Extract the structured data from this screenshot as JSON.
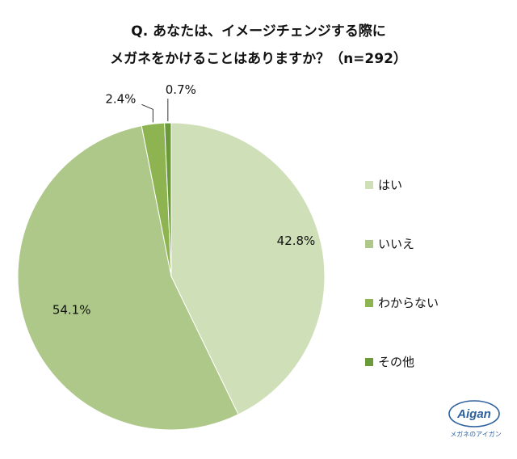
{
  "title": {
    "line1": "Q. あなたは、イメージチェンジする際に",
    "line2": "メガネをかけることはありますか？（n=292）"
  },
  "chart_data": {
    "type": "pie",
    "title": "Q. あなたは、イメージチェンジする際に メガネをかけることはありますか？（n=292）",
    "categories": [
      "はい",
      "いいえ",
      "わからない",
      "その他"
    ],
    "values": [
      42.8,
      54.1,
      2.4,
      0.7
    ],
    "data_labels": [
      "42.8%",
      "54.1%",
      "2.4%",
      "0.7%"
    ],
    "colors": [
      "#cfdfb8",
      "#adc888",
      "#8db451",
      "#6b9a3b"
    ],
    "start_angle": "12 o'clock",
    "direction": "clockwise",
    "legend_position": "right"
  },
  "logo": {
    "text": "Aigan",
    "caption": "メガネのアイガン"
  }
}
